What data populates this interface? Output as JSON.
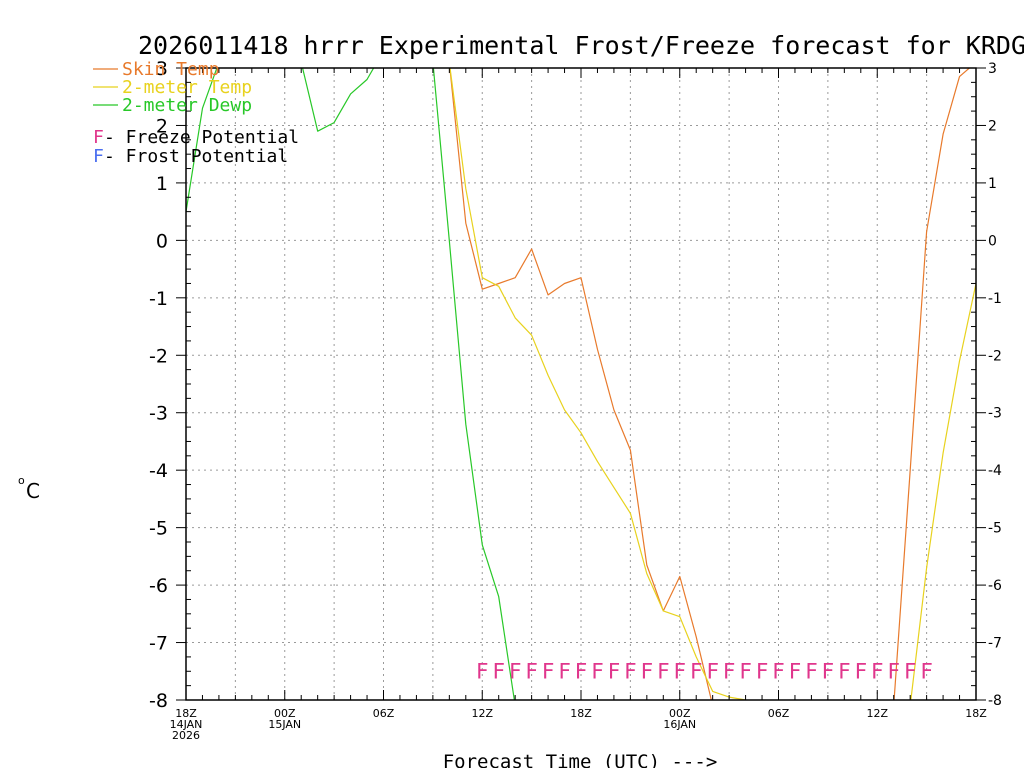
{
  "chart_data": {
    "type": "line",
    "title": "2026011418 hrrr Experimental Frost/Freeze forecast for KRDG",
    "ylabel_unit": "o",
    "ylabel_letter": "C",
    "xlabel": "Forecast Time (UTC) --->",
    "ylim": [
      -8,
      3
    ],
    "xlim": [
      0,
      48
    ],
    "yticks": [
      -8,
      -7,
      -6,
      -5,
      -4,
      -3,
      -2,
      -1,
      0,
      1,
      2,
      3
    ],
    "ytick_labels": [
      "-8",
      "-7",
      "-6",
      "-5",
      "-4",
      "-3",
      "-2",
      "-1",
      "0",
      "1",
      "2",
      "3"
    ],
    "xticks": [
      {
        "x": 0,
        "l1": "18Z",
        "l2": "14JAN",
        "l3": "2026"
      },
      {
        "x": 6,
        "l1": "00Z",
        "l2": "15JAN",
        "l3": ""
      },
      {
        "x": 12,
        "l1": "06Z",
        "l2": "",
        "l3": ""
      },
      {
        "x": 18,
        "l1": "12Z",
        "l2": "",
        "l3": ""
      },
      {
        "x": 24,
        "l1": "18Z",
        "l2": "",
        "l3": ""
      },
      {
        "x": 30,
        "l1": "00Z",
        "l2": "16JAN",
        "l3": ""
      },
      {
        "x": 36,
        "l1": "06Z",
        "l2": "",
        "l3": ""
      },
      {
        "x": 42,
        "l1": "12Z",
        "l2": "",
        "l3": ""
      },
      {
        "x": 48,
        "l1": "18Z",
        "l2": "",
        "l3": ""
      }
    ],
    "series": [
      {
        "name": "Skin Temp",
        "color": "#e87a2c",
        "points": [
          [
            16,
            3.1
          ],
          [
            17,
            0.3
          ],
          [
            18,
            -0.85
          ],
          [
            19,
            -0.75
          ],
          [
            20,
            -0.65
          ],
          [
            21,
            -0.15
          ],
          [
            22,
            -0.95
          ],
          [
            23,
            -0.75
          ],
          [
            24,
            -0.65
          ],
          [
            25,
            -1.9
          ],
          [
            26,
            -2.95
          ],
          [
            27,
            -3.65
          ],
          [
            28,
            -5.65
          ],
          [
            29,
            -6.45
          ],
          [
            30,
            -5.85
          ],
          [
            31,
            -6.9
          ],
          [
            32,
            -8.1
          ],
          [
            43,
            -8.1
          ],
          [
            44,
            -4.0
          ],
          [
            45,
            0.15
          ],
          [
            46,
            1.85
          ],
          [
            47,
            2.85
          ],
          [
            48,
            3.1
          ]
        ]
      },
      {
        "name": "2-meter Temp",
        "color": "#e8d21e",
        "points": [
          [
            16,
            3.1
          ],
          [
            17,
            0.9
          ],
          [
            18,
            -0.65
          ],
          [
            19,
            -0.8
          ],
          [
            20,
            -1.35
          ],
          [
            21,
            -1.65
          ],
          [
            22,
            -2.35
          ],
          [
            23,
            -2.95
          ],
          [
            24,
            -3.35
          ],
          [
            25,
            -3.85
          ],
          [
            26,
            -4.3
          ],
          [
            27,
            -4.75
          ],
          [
            28,
            -5.8
          ],
          [
            29,
            -6.45
          ],
          [
            30,
            -6.55
          ],
          [
            31,
            -7.25
          ],
          [
            32,
            -7.85
          ],
          [
            33,
            -7.95
          ],
          [
            34,
            -8.0
          ],
          [
            44,
            -8.1
          ],
          [
            45,
            -5.7
          ],
          [
            46,
            -3.7
          ],
          [
            47,
            -2.1
          ],
          [
            48,
            -0.75
          ]
        ]
      },
      {
        "name": "2-meter Dewp",
        "color": "#28c828",
        "points": [
          [
            0,
            0.5
          ],
          [
            1,
            2.3
          ],
          [
            2,
            3.1
          ],
          [
            7,
            3.1
          ],
          [
            8,
            1.9
          ],
          [
            9,
            2.05
          ],
          [
            10,
            2.55
          ],
          [
            11,
            2.8
          ],
          [
            11.6,
            3.1
          ],
          [
            15,
            3.1
          ],
          [
            16,
            0.0
          ],
          [
            17,
            -3.2
          ],
          [
            18,
            -5.3
          ],
          [
            19,
            -6.2
          ],
          [
            20,
            -8.1
          ]
        ]
      }
    ],
    "freeze_marker": {
      "letter": "F",
      "color": "#e0368c",
      "y": -7.5,
      "x_start": 18,
      "x_end": 45
    },
    "legend": [
      {
        "label": "Skin Temp",
        "color": "#e87a2c"
      },
      {
        "label": "2-meter Temp",
        "color": "#e8d21e"
      },
      {
        "label": "2-meter Dewp",
        "color": "#28c828"
      }
    ],
    "potential_legend": [
      {
        "letter": "F",
        "text": " - Freeze Potential",
        "color": "#e0368c"
      },
      {
        "letter": "F",
        "text": " - Frost Potential",
        "color": "#4a6ef0"
      }
    ]
  }
}
